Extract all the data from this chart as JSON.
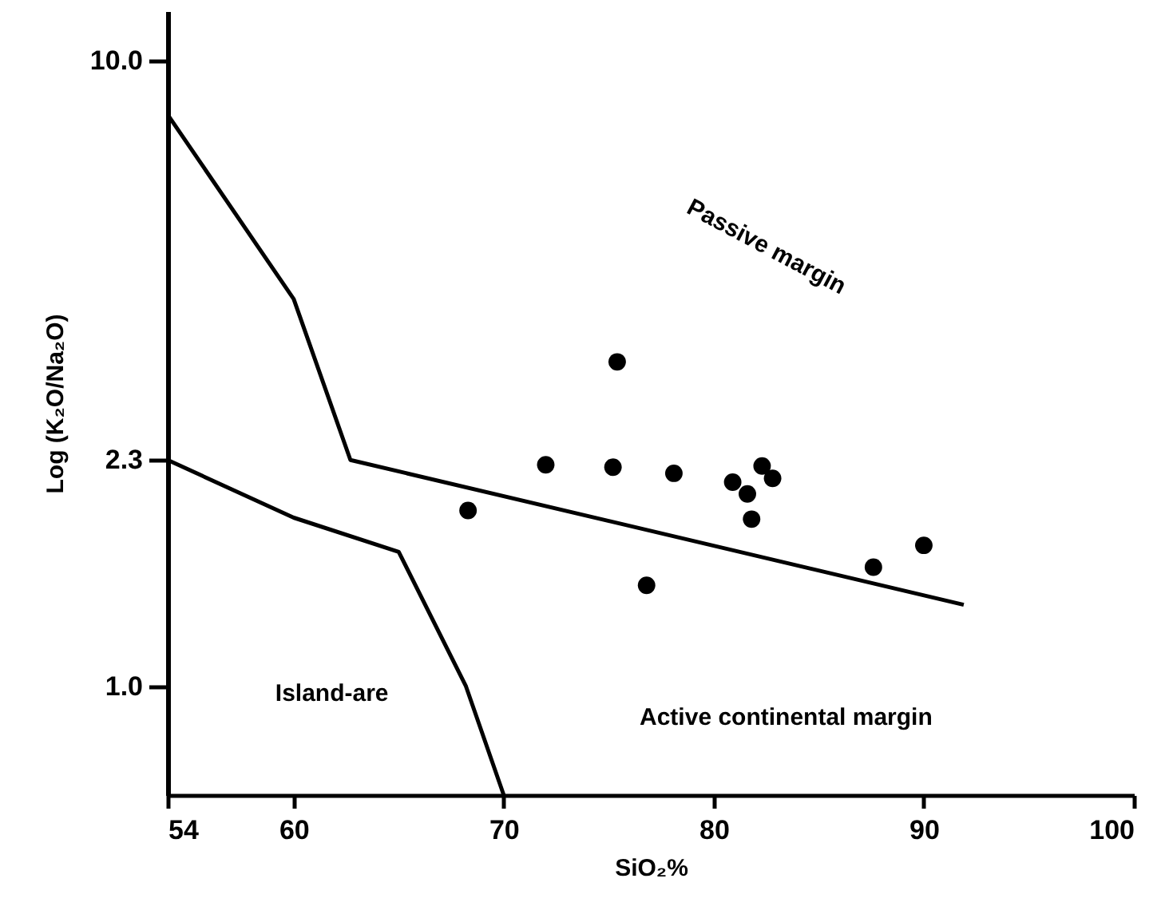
{
  "chart_data": {
    "type": "scatter",
    "xlabel": "SiO₂%",
    "ylabel": "Log (K₂O/Na₂O)",
    "xlim": [
      54,
      100
    ],
    "xticks": [
      54,
      60,
      70,
      80,
      90,
      100
    ],
    "ylim": [
      0.67,
      12
    ],
    "yticks": [
      {
        "value": 1,
        "label": "1.0"
      },
      2.3,
      {
        "value": 10,
        "label": "10.0"
      }
    ],
    "grid": false,
    "log": "y",
    "series": [
      {
        "type": "scatter",
        "color": "#000000",
        "marker": "circle",
        "x": [
          72.0,
          75.4,
          75.2,
          78.1,
          82.3,
          82.8,
          80.9,
          81.6,
          68.3,
          81.8,
          90.0,
          87.6,
          76.8
        ],
        "values": [
          2.26,
          3.3,
          2.24,
          2.19,
          2.25,
          2.15,
          2.12,
          2.03,
          1.91,
          1.85,
          1.68,
          1.55,
          1.45
        ]
      },
      {
        "type": "line",
        "color": "#000000",
        "marker": "none",
        "line_style": "solid",
        "x": [
          54,
          60,
          62.7,
          91.9
        ],
        "values": [
          8.2,
          4.16,
          2.3,
          1.35
        ]
      },
      {
        "type": "line",
        "color": "#000000",
        "marker": "none",
        "line_style": "solid",
        "x": [
          54,
          60,
          65,
          68.2,
          70
        ],
        "values": [
          2.3,
          1.86,
          1.64,
          1.0,
          0.67
        ]
      }
    ],
    "annotations": [
      "Passive margin",
      "Island-are",
      "Active continental margin"
    ]
  }
}
